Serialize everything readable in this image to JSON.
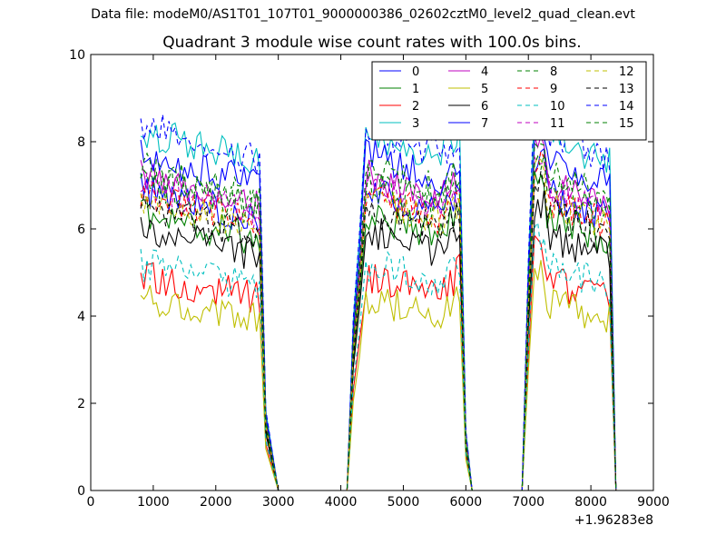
{
  "header": {
    "supertitle": "Data file: modeM0/AS1T01_107T01_9000000386_02602cztM0_level2_quad_clean.evt",
    "title": "Quadrant 3 module wise count rates with 100.0s bins."
  },
  "chart_data": {
    "type": "line",
    "title": "Quadrant 3 module wise count rates with 100.0s bins.",
    "xlabel": "",
    "ylabel": "",
    "xlim": [
      0,
      9000
    ],
    "ylim": [
      0,
      10
    ],
    "x_offset_label": "+1.96283e8",
    "xticks": [
      0,
      1000,
      2000,
      3000,
      4000,
      5000,
      6000,
      7000,
      8000,
      9000
    ],
    "yticks": [
      0,
      2,
      4,
      6,
      8,
      10
    ],
    "grid": false,
    "legend_position": "top-right",
    "legend_columns": 4,
    "segments": [
      {
        "start": 800,
        "end": 2700,
        "rise": [],
        "fall": [
          2800,
          2900,
          3000
        ]
      },
      {
        "start": 4400,
        "end": 5900,
        "rise": [
          4100,
          4200,
          4300
        ],
        "fall": [
          6000,
          6100
        ]
      },
      {
        "start": 7100,
        "end": 8300,
        "rise": [
          6900,
          7000
        ],
        "fall": [
          8400
        ]
      }
    ],
    "series": [
      {
        "name": "0",
        "color": "#0000ff",
        "dash": "solid",
        "level": 6.5
      },
      {
        "name": "1",
        "color": "#008000",
        "dash": "solid",
        "level": 6.0
      },
      {
        "name": "2",
        "color": "#ff0000",
        "dash": "solid",
        "level": 4.6
      },
      {
        "name": "3",
        "color": "#00bfbf",
        "dash": "solid",
        "level": 7.8
      },
      {
        "name": "4",
        "color": "#bf00bf",
        "dash": "solid",
        "level": 6.8
      },
      {
        "name": "5",
        "color": "#bfbf00",
        "dash": "solid",
        "level": 4.1
      },
      {
        "name": "6",
        "color": "#000000",
        "dash": "solid",
        "level": 5.6
      },
      {
        "name": "7",
        "color": "#0000ff",
        "dash": "solid",
        "level": 7.3
      },
      {
        "name": "8",
        "color": "#008000",
        "dash": "dashed",
        "level": 7.0
      },
      {
        "name": "9",
        "color": "#ff0000",
        "dash": "dashed",
        "level": 6.4
      },
      {
        "name": "10",
        "color": "#00bfbf",
        "dash": "dashed",
        "level": 4.9
      },
      {
        "name": "11",
        "color": "#bf00bf",
        "dash": "dashed",
        "level": 6.6
      },
      {
        "name": "12",
        "color": "#bfbf00",
        "dash": "dashed",
        "level": 6.3
      },
      {
        "name": "13",
        "color": "#000000",
        "dash": "dashed",
        "level": 6.1
      },
      {
        "name": "14",
        "color": "#0000ff",
        "dash": "dashed",
        "level": 7.9
      },
      {
        "name": "15",
        "color": "#008000",
        "dash": "dashed",
        "level": 6.7
      }
    ]
  }
}
